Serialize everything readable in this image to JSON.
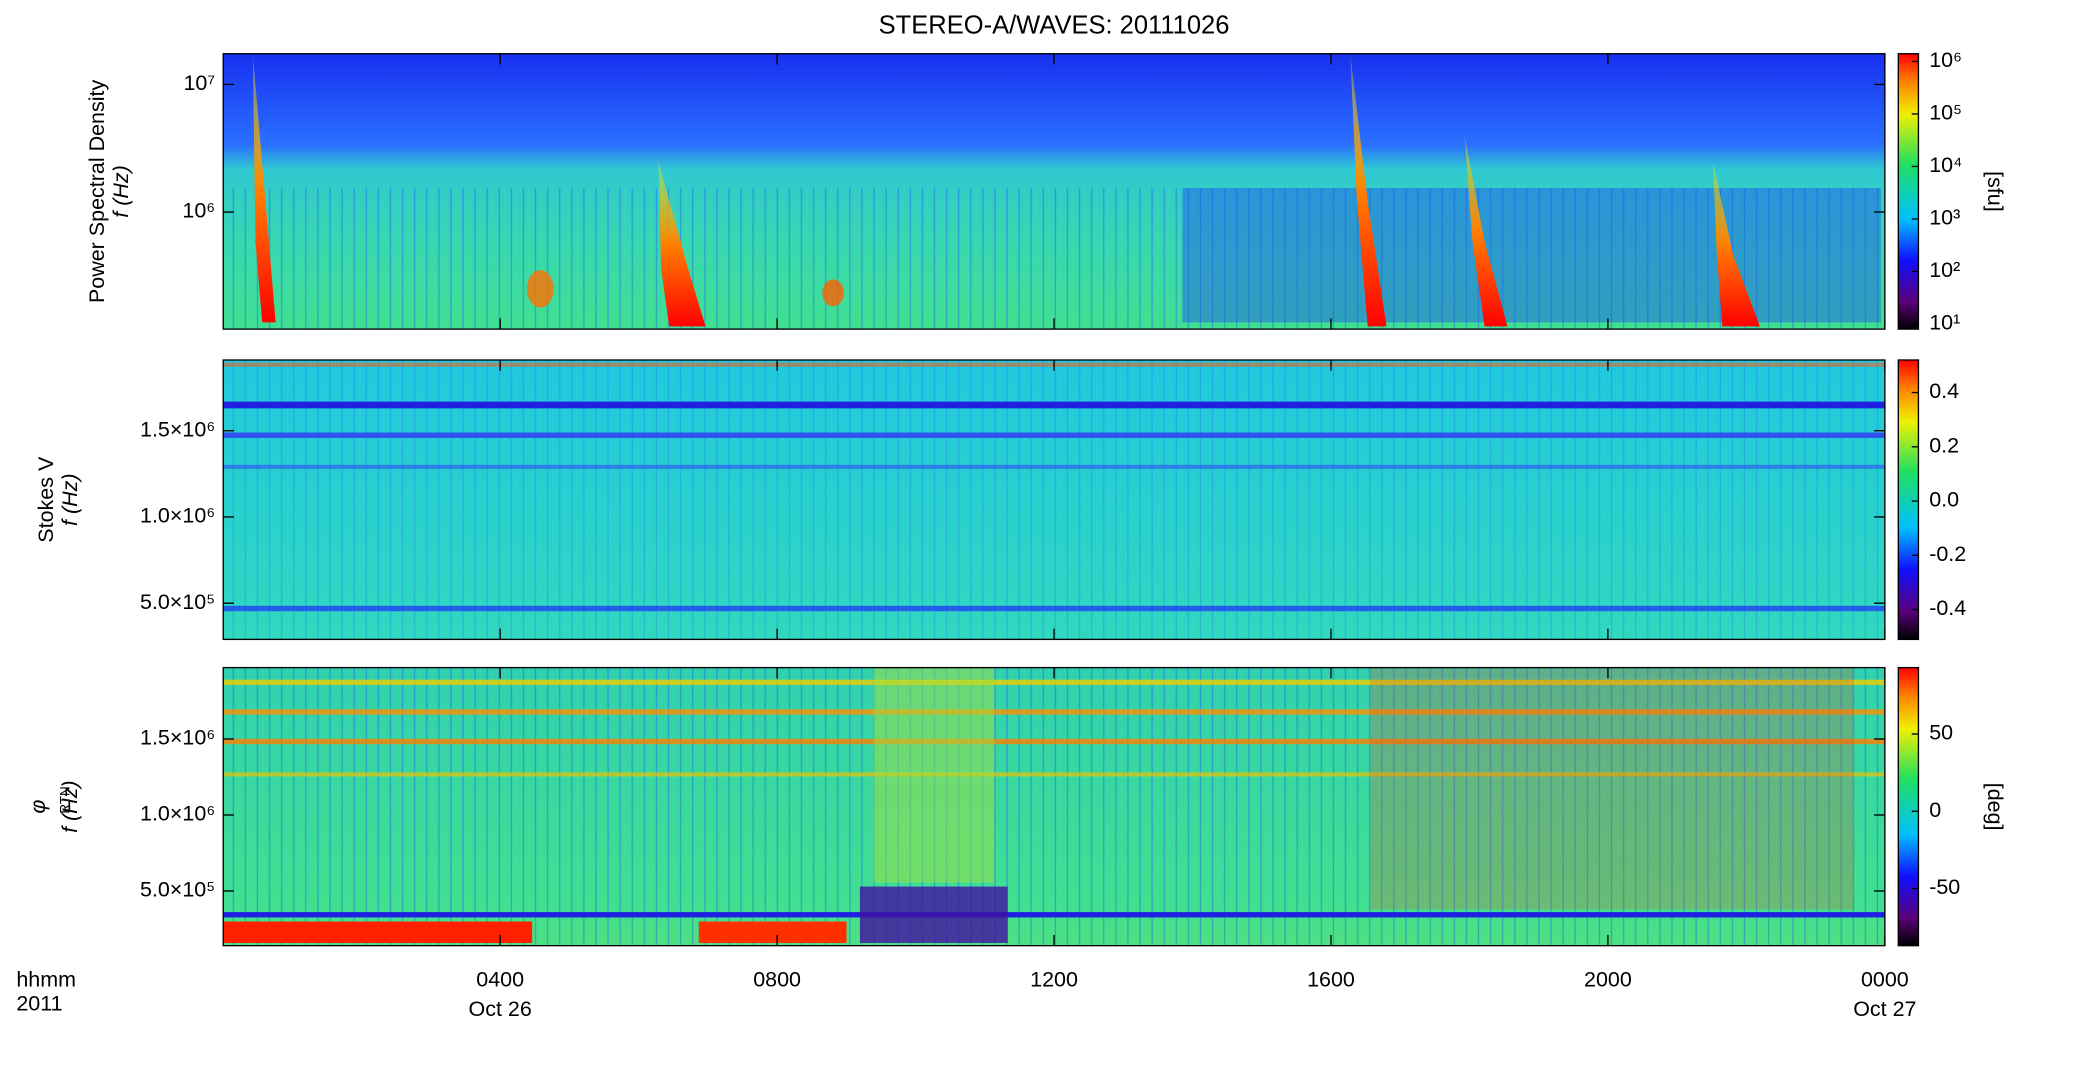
{
  "chart_data": [
    {
      "type": "heatmap",
      "title": "STEREO-A/WAVES: 20111026",
      "ylabel": "Power Spectral Density",
      "ylabel2": "f (Hz)",
      "yscale": "log",
      "ylim": [
        121000,
        17400000
      ],
      "yticks": [
        {
          "value": 1000000,
          "label": "10⁶"
        },
        {
          "value": 10000000,
          "label": "10⁷"
        }
      ],
      "colorbar": {
        "scale": "log",
        "clim": [
          8,
          1400000
        ],
        "ticks": [
          {
            "value": 10,
            "label": "10¹"
          },
          {
            "value": 100,
            "label": "10²"
          },
          {
            "value": 1000,
            "label": "10³"
          },
          {
            "value": 10000,
            "label": "10⁴"
          },
          {
            "value": 100000,
            "label": "10⁵"
          },
          {
            "value": 1000000,
            "label": "10⁶"
          }
        ],
        "label": "[sfu]"
      }
    },
    {
      "type": "heatmap",
      "ylabel": "Stokes V",
      "ylabel2": "f (Hz)",
      "yscale": "linear",
      "ylim": [
        290000,
        1910000
      ],
      "yticks": [
        {
          "value": 500000,
          "label": "5.0×10⁵"
        },
        {
          "value": 1000000,
          "label": "1.0×10⁶"
        },
        {
          "value": 1500000,
          "label": "1.5×10⁶"
        }
      ],
      "colorbar": {
        "scale": "linear",
        "clim": [
          -0.51,
          0.52
        ],
        "ticks": [
          -0.4,
          -0.2,
          {
            "value": 0,
            "label": "0.0"
          },
          0.2,
          0.4
        ]
      }
    },
    {
      "type": "heatmap",
      "ylabel": "φ",
      "ylabel_sub": "RTN",
      "ylabel2": "f (Hz)",
      "yscale": "linear",
      "ylim": [
        140000,
        1970000
      ],
      "yticks": [
        {
          "value": 500000,
          "label": "5.0×10⁵"
        },
        {
          "value": 1000000,
          "label": "1.0×10⁶"
        },
        {
          "value": 1500000,
          "label": "1.5×10⁶"
        }
      ],
      "colorbar": {
        "scale": "linear",
        "clim": [
          -87,
          93
        ],
        "ticks": [
          -50,
          0,
          50
        ],
        "label": "[deg]"
      },
      "xlim": [
        0,
        24
      ],
      "xticks": [
        {
          "value": 4,
          "label": "0400",
          "date": "Oct 26"
        },
        {
          "value": 8,
          "label": "0800"
        },
        {
          "value": 12,
          "label": "1200"
        },
        {
          "value": 16,
          "label": "1600"
        },
        {
          "value": 20,
          "label": "2000"
        },
        {
          "value": 24,
          "label": "0000",
          "date": "Oct 27"
        }
      ],
      "xlabel": "hhmm",
      "xlabel2": "2011"
    }
  ]
}
